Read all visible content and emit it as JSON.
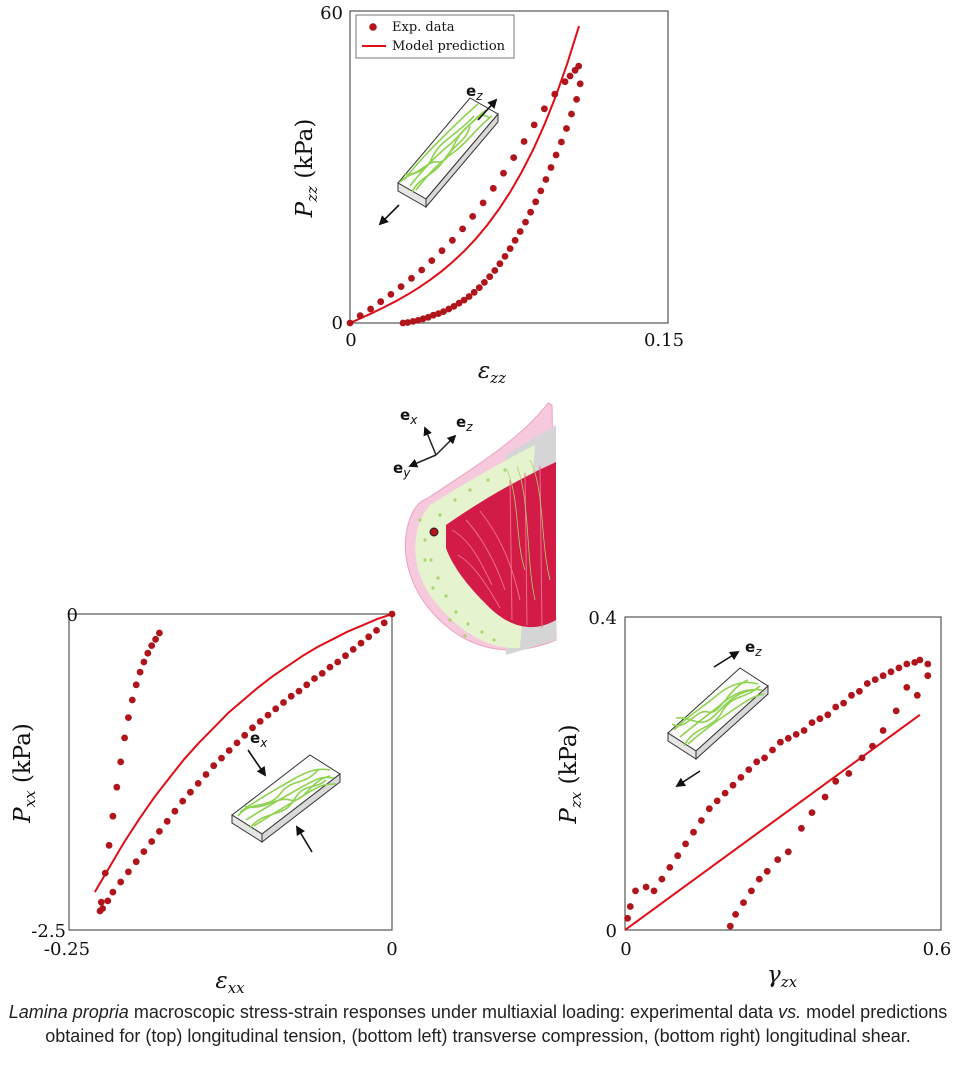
{
  "legend": {
    "exp": "Exp. data",
    "model": "Model prediction"
  },
  "caption": {
    "italic_1": "Lamina propria",
    "text_1": " macroscopic stress-strain responses under multiaxial loading: experimental data ",
    "italic_2": "vs.",
    "text_2": " model predictions obtained for (top) longitudinal tension, (bottom left) transverse compression, (bottom right) longitudinal shear."
  },
  "vectors": {
    "ex": {
      "base": "e",
      "sub": "x"
    },
    "ey": {
      "base": "e",
      "sub": "y"
    },
    "ez": {
      "base": "e",
      "sub": "z"
    }
  },
  "colors": {
    "data": "#b0151c",
    "model": "#e00d16",
    "fiber": "#8fd24f",
    "tissue_pink": "#f3a9c6",
    "tissue_red": "#d21b46"
  },
  "chart_data": [
    {
      "id": "top",
      "type": "scatter",
      "xlabel": "ε_zz",
      "xlabel_base": "ε",
      "xlabel_sub": "zz",
      "ylabel": "P_zz (kPa)",
      "ylabel_base": "P",
      "ylabel_sub": "zz",
      "ylabel_unit": " (kPa)",
      "xlim": [
        0,
        0.15
      ],
      "ylim": [
        0,
        60
      ],
      "xticks": [
        "0",
        "0.15"
      ],
      "yticks": [
        "0",
        "60"
      ],
      "legend": "top-left",
      "series": [
        {
          "name": "Exp. data",
          "kind": "markers",
          "x": [
            0,
            0.0048,
            0.0097,
            0.0145,
            0.0193,
            0.0241,
            0.029,
            0.0338,
            0.0386,
            0.0434,
            0.0483,
            0.0531,
            0.0579,
            0.0628,
            0.0676,
            0.0724,
            0.0772,
            0.0821,
            0.0869,
            0.0917,
            0.0966,
            0.1014,
            0.1038,
            0.1062,
            0.1079,
            0.1086,
            0.1069,
            0.1045,
            0.1021,
            0.0997,
            0.0972,
            0.0948,
            0.0924,
            0.09,
            0.0876,
            0.0852,
            0.0828,
            0.0803,
            0.0779,
            0.0755,
            0.0731,
            0.0707,
            0.0683,
            0.0659,
            0.0634,
            0.061,
            0.0586,
            0.0562,
            0.0538,
            0.0514,
            0.049,
            0.0466,
            0.0441,
            0.0417,
            0.0393,
            0.0369,
            0.0345,
            0.0321,
            0.0297,
            0.0272,
            0.025
          ],
          "y": [
            0,
            1.4,
            2.7,
            4.1,
            5.5,
            7.0,
            8.6,
            10.2,
            12.0,
            13.9,
            15.9,
            18.1,
            20.5,
            23.1,
            25.9,
            28.8,
            31.8,
            34.9,
            38.1,
            41.2,
            44.0,
            46.4,
            47.5,
            48.6,
            49.4,
            46.0,
            43.0,
            40.2,
            37.4,
            34.8,
            32.3,
            29.9,
            27.6,
            25.4,
            23.3,
            21.3,
            19.4,
            17.6,
            15.9,
            14.3,
            12.8,
            11.4,
            10.1,
            8.9,
            7.8,
            6.8,
            5.9,
            5.1,
            4.4,
            3.8,
            3.2,
            2.7,
            2.2,
            1.8,
            1.5,
            1.1,
            0.8,
            0.5,
            0.3,
            0.1,
            0
          ]
        },
        {
          "name": "Model prediction",
          "kind": "line",
          "x": [
            0,
            0.0054,
            0.0108,
            0.0162,
            0.0216,
            0.027,
            0.0324,
            0.0378,
            0.0432,
            0.0486,
            0.054,
            0.0594,
            0.0648,
            0.0702,
            0.0756,
            0.081,
            0.0864,
            0.0918,
            0.0972,
            0.1026,
            0.108
          ],
          "y": [
            0,
            0.97,
            1.98,
            3.05,
            4.19,
            5.43,
            6.79,
            8.29,
            9.95,
            11.8,
            13.88,
            16.22,
            18.86,
            21.84,
            25.21,
            29.03,
            33.35,
            38.24,
            43.77,
            50.03,
            57.1
          ]
        }
      ]
    },
    {
      "id": "bottom-left",
      "type": "scatter",
      "xlabel": "ε_xx",
      "xlabel_base": "ε",
      "xlabel_sub": "xx",
      "ylabel": "P_xx (kPa)",
      "ylabel_base": "P",
      "ylabel_sub": "xx",
      "ylabel_unit": " (kPa)",
      "xlim": [
        -0.25,
        0
      ],
      "ylim": [
        -2.5,
        0
      ],
      "xticks": [
        "-0.25",
        "0"
      ],
      "yticks": [
        "0",
        "-2.5"
      ],
      "series": [
        {
          "name": "Exp. data",
          "kind": "markers",
          "x": [
            0,
            -0.006,
            -0.012,
            -0.018,
            -0.024,
            -0.03,
            -0.036,
            -0.042,
            -0.048,
            -0.054,
            -0.06,
            -0.066,
            -0.072,
            -0.078,
            -0.084,
            -0.09,
            -0.096,
            -0.102,
            -0.108,
            -0.114,
            -0.12,
            -0.126,
            -0.132,
            -0.138,
            -0.144,
            -0.15,
            -0.156,
            -0.162,
            -0.168,
            -0.174,
            -0.18,
            -0.186,
            -0.192,
            -0.198,
            -0.204,
            -0.21,
            -0.216,
            -0.22,
            -0.224,
            -0.226,
            -0.225,
            -0.222,
            -0.219,
            -0.216,
            -0.213,
            -0.21,
            -0.207,
            -0.204,
            -0.201,
            -0.198,
            -0.195,
            -0.192,
            -0.189,
            -0.186,
            -0.183,
            -0.18
          ],
          "y": [
            0,
            -0.07,
            -0.13,
            -0.18,
            -0.23,
            -0.28,
            -0.33,
            -0.38,
            -0.42,
            -0.47,
            -0.51,
            -0.56,
            -0.61,
            -0.65,
            -0.7,
            -0.75,
            -0.8,
            -0.85,
            -0.9,
            -0.96,
            -1.02,
            -1.08,
            -1.14,
            -1.2,
            -1.27,
            -1.34,
            -1.41,
            -1.48,
            -1.56,
            -1.64,
            -1.72,
            -1.8,
            -1.88,
            -1.96,
            -2.04,
            -2.12,
            -2.2,
            -2.27,
            -2.33,
            -2.35,
            -2.28,
            -2.05,
            -1.83,
            -1.6,
            -1.37,
            -1.17,
            -0.98,
            -0.82,
            -0.68,
            -0.56,
            -0.46,
            -0.38,
            -0.31,
            -0.25,
            -0.2,
            -0.15
          ]
        },
        {
          "name": "Model prediction",
          "kind": "line",
          "x": [
            0,
            -0.0115,
            -0.023,
            -0.0345,
            -0.046,
            -0.0575,
            -0.069,
            -0.0805,
            -0.092,
            -0.1035,
            -0.115,
            -0.1265,
            -0.138,
            -0.1495,
            -0.161,
            -0.1725,
            -0.184,
            -0.1955,
            -0.207,
            -0.2185,
            -0.23
          ],
          "y": [
            0,
            -0.04,
            -0.09,
            -0.14,
            -0.2,
            -0.26,
            -0.33,
            -0.41,
            -0.49,
            -0.58,
            -0.68,
            -0.78,
            -0.9,
            -1.02,
            -1.15,
            -1.3,
            -1.45,
            -1.62,
            -1.8,
            -2.0,
            -2.2
          ]
        }
      ]
    },
    {
      "id": "bottom-right",
      "type": "scatter",
      "xlabel": "γ_zx",
      "xlabel_base": "γ",
      "xlabel_sub": "zx",
      "ylabel": "P_zx (kPa)",
      "ylabel_base": "P",
      "ylabel_sub": "zx",
      "ylabel_unit": " (kPa)",
      "xlim": [
        0,
        0.6
      ],
      "ylim": [
        0,
        0.4
      ],
      "xticks": [
        "0",
        "0.6"
      ],
      "yticks": [
        "0.4",
        "0"
      ],
      "series": [
        {
          "name": "Exp. data",
          "kind": "markers",
          "x": [
            0.005,
            0.01,
            0.02,
            0.04,
            0.055,
            0.07,
            0.085,
            0.1,
            0.115,
            0.13,
            0.145,
            0.16,
            0.175,
            0.19,
            0.205,
            0.22,
            0.235,
            0.25,
            0.265,
            0.28,
            0.295,
            0.31,
            0.325,
            0.34,
            0.355,
            0.37,
            0.385,
            0.4,
            0.415,
            0.43,
            0.445,
            0.46,
            0.475,
            0.49,
            0.505,
            0.52,
            0.535,
            0.55,
            0.56,
            0.575,
            0.575,
            0.555,
            0.535,
            0.515,
            0.49,
            0.47,
            0.45,
            0.425,
            0.4,
            0.38,
            0.355,
            0.335,
            0.31,
            0.29,
            0.27,
            0.255,
            0.24,
            0.225,
            0.21,
            0.2
          ],
          "y": [
            0.015,
            0.03,
            0.05,
            0.055,
            0.05,
            0.065,
            0.08,
            0.095,
            0.11,
            0.125,
            0.14,
            0.155,
            0.165,
            0.175,
            0.185,
            0.195,
            0.205,
            0.215,
            0.22,
            0.23,
            0.24,
            0.245,
            0.25,
            0.255,
            0.265,
            0.27,
            0.275,
            0.285,
            0.29,
            0.3,
            0.305,
            0.315,
            0.32,
            0.325,
            0.33,
            0.335,
            0.34,
            0.342,
            0.345,
            0.34,
            0.325,
            0.3,
            0.31,
            0.28,
            0.255,
            0.235,
            0.22,
            0.2,
            0.19,
            0.17,
            0.15,
            0.13,
            0.1,
            0.09,
            0.075,
            0.065,
            0.05,
            0.035,
            0.02,
            0.005
          ]
        },
        {
          "name": "Model prediction",
          "kind": "line",
          "x": [
            0,
            0.56
          ],
          "y": [
            0,
            0.275
          ]
        }
      ]
    }
  ]
}
